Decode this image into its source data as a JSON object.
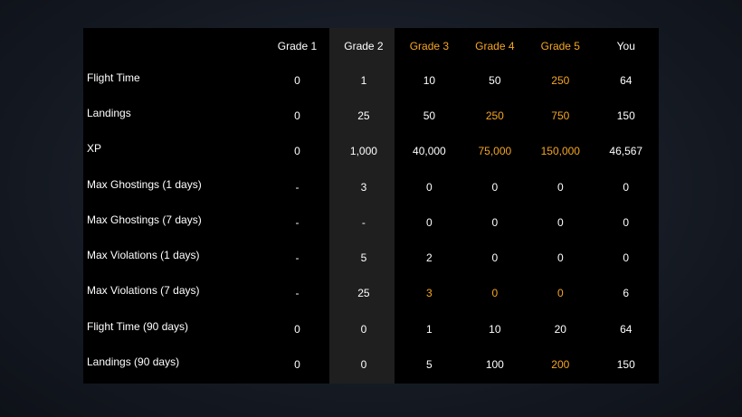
{
  "colors": {
    "accent": "#f5a623",
    "text": "#ffffff",
    "panel": "#000000",
    "highlight_column": "#1f1f1f"
  },
  "header": {
    "columns": [
      {
        "label": "",
        "accent": false
      },
      {
        "label": "Grade 1",
        "accent": false
      },
      {
        "label": "Grade 2",
        "accent": false
      },
      {
        "label": "Grade 3",
        "accent": true
      },
      {
        "label": "Grade 4",
        "accent": true
      },
      {
        "label": "Grade 5",
        "accent": true
      },
      {
        "label": "You",
        "accent": false
      }
    ]
  },
  "rows": [
    {
      "label": "Flight Time",
      "values": [
        "0",
        "1",
        "10",
        "50",
        "250",
        "64"
      ],
      "accent": [
        false,
        false,
        false,
        false,
        true,
        false
      ]
    },
    {
      "label": "Landings",
      "values": [
        "0",
        "25",
        "50",
        "250",
        "750",
        "150"
      ],
      "accent": [
        false,
        false,
        false,
        true,
        true,
        false
      ]
    },
    {
      "label": "XP",
      "values": [
        "0",
        "1,000",
        "40,000",
        "75,000",
        "150,000",
        "46,567"
      ],
      "accent": [
        false,
        false,
        false,
        true,
        true,
        false
      ]
    },
    {
      "label": "Max Ghostings (1 days)",
      "values": [
        "-",
        "3",
        "0",
        "0",
        "0",
        "0"
      ],
      "accent": [
        false,
        false,
        false,
        false,
        false,
        false
      ]
    },
    {
      "label": "Max Ghostings (7 days)",
      "values": [
        "-",
        "-",
        "0",
        "0",
        "0",
        "0"
      ],
      "accent": [
        false,
        false,
        false,
        false,
        false,
        false
      ]
    },
    {
      "label": "Max Violations (1 days)",
      "values": [
        "-",
        "5",
        "2",
        "0",
        "0",
        "0"
      ],
      "accent": [
        false,
        false,
        false,
        false,
        false,
        false
      ]
    },
    {
      "label": "Max Violations (7 days)",
      "values": [
        "-",
        "25",
        "3",
        "0",
        "0",
        "6"
      ],
      "accent": [
        false,
        false,
        true,
        true,
        true,
        false
      ]
    },
    {
      "label": "Flight Time (90 days)",
      "values": [
        "0",
        "0",
        "1",
        "10",
        "20",
        "64"
      ],
      "accent": [
        false,
        false,
        false,
        false,
        false,
        false
      ]
    },
    {
      "label": "Landings (90 days)",
      "values": [
        "0",
        "0",
        "5",
        "100",
        "200",
        "150"
      ],
      "accent": [
        false,
        false,
        false,
        false,
        true,
        false
      ]
    }
  ]
}
